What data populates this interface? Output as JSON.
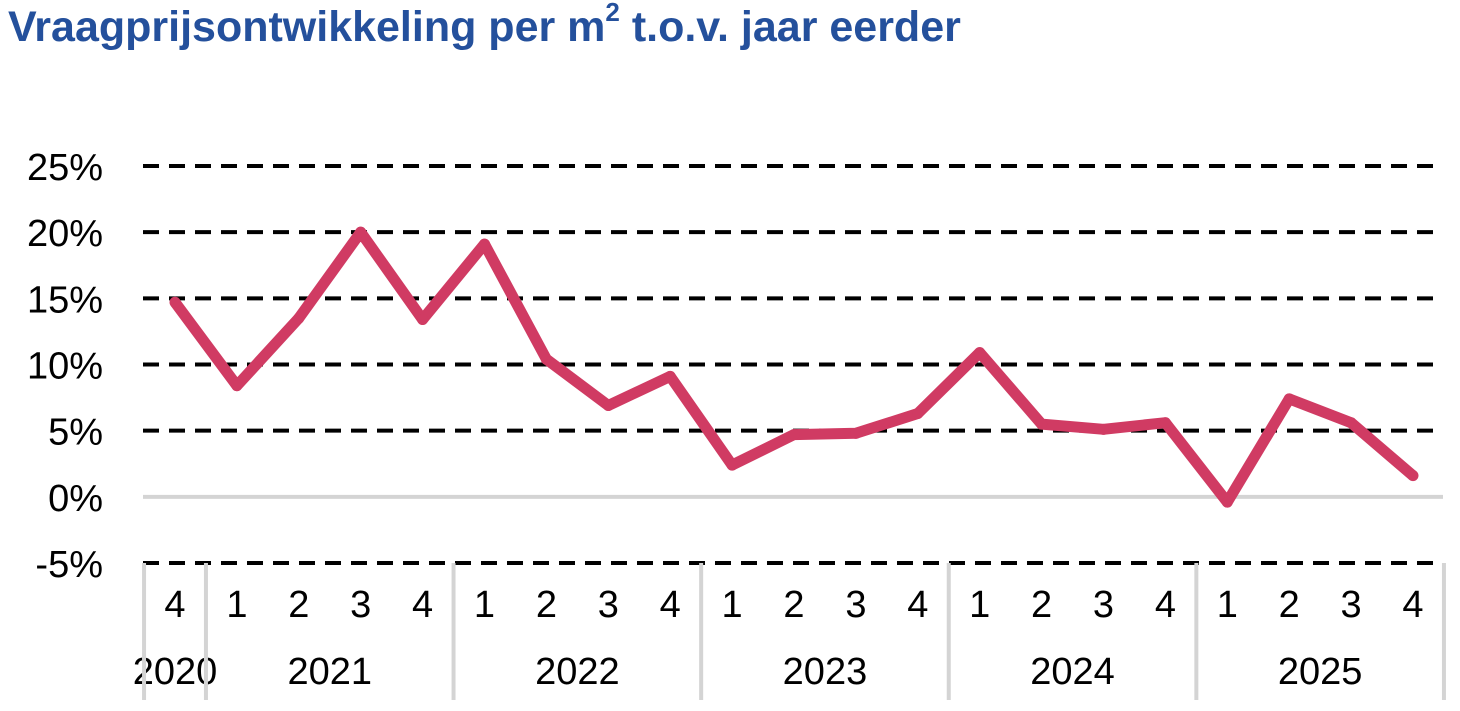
{
  "title": {
    "prefix": "Vraagprijsontwikkeling per m",
    "superscript": "2",
    "suffix": " t.o.v. jaar eerder"
  },
  "chart_data": {
    "type": "line",
    "title": "Vraagprijsontwikkeling per m² t.o.v. jaar eerder",
    "xlabel": "",
    "ylabel": "",
    "ylim": [
      -5,
      25
    ],
    "y_ticks": [
      -5,
      0,
      5,
      10,
      15,
      20,
      25
    ],
    "y_tick_labels": [
      "-5%",
      "0%",
      "5%",
      "10%",
      "15%",
      "20%",
      "25%"
    ],
    "grid": "dashed horizontal gridlines; solid line at 0%",
    "x": [
      "2020 Q4",
      "2021 Q1",
      "2021 Q2",
      "2021 Q3",
      "2021 Q4",
      "2022 Q1",
      "2022 Q2",
      "2022 Q3",
      "2022 Q4",
      "2023 Q1",
      "2023 Q2",
      "2023 Q3",
      "2023 Q4",
      "2024 Q1",
      "2024 Q2",
      "2024 Q3",
      "2024 Q4",
      "2025 Q1",
      "2025 Q2",
      "2025 Q3",
      "2025 Q4"
    ],
    "quarter_labels": [
      "4",
      "1",
      "2",
      "3",
      "4",
      "1",
      "2",
      "3",
      "4",
      "1",
      "2",
      "3",
      "4",
      "1",
      "2",
      "3",
      "4",
      "1",
      "2",
      "3",
      "4"
    ],
    "year_groups": [
      {
        "label": "2020",
        "count": 1
      },
      {
        "label": "2021",
        "count": 4
      },
      {
        "label": "2022",
        "count": 4
      },
      {
        "label": "2023",
        "count": 4
      },
      {
        "label": "2024",
        "count": 4
      },
      {
        "label": "2025",
        "count": 4
      }
    ],
    "series": [
      {
        "color": "#d03b63",
        "values": [
          14.7,
          8.4,
          13.5,
          20.0,
          13.4,
          19.1,
          10.4,
          6.9,
          9.1,
          2.4,
          4.7,
          4.8,
          6.3,
          10.9,
          5.5,
          5.1,
          5.6,
          -0.4,
          7.4,
          5.6,
          1.6
        ]
      }
    ]
  }
}
